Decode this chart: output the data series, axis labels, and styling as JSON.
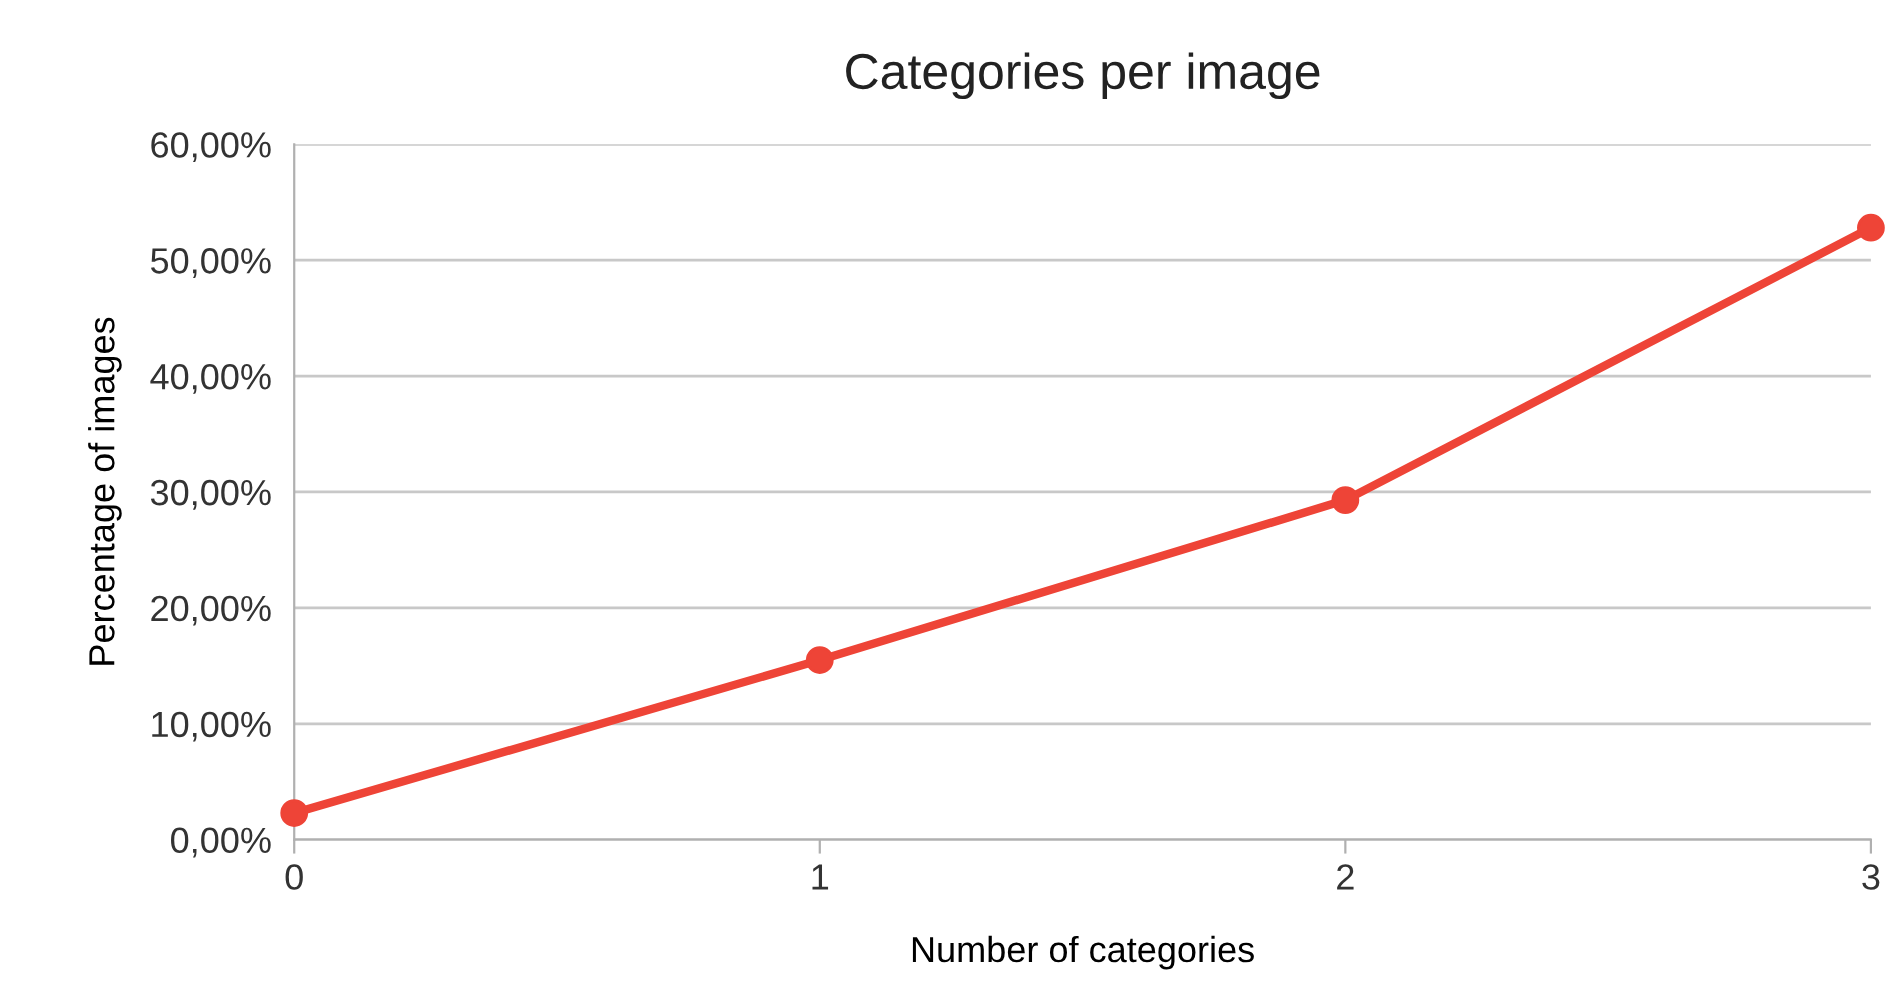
{
  "chart_data": {
    "type": "line",
    "title": "Categories per image",
    "xlabel": "Number of categories",
    "ylabel": "Percentage of images",
    "x": [
      0,
      1,
      2,
      3
    ],
    "series": [
      {
        "color": "#ee4437",
        "values": [
          2.3,
          15.5,
          29.3,
          52.8
        ]
      }
    ],
    "xlim": [
      0,
      3
    ],
    "xticks": [
      0,
      1,
      2,
      3
    ],
    "ylim": [
      0,
      60
    ],
    "yticks": [
      {
        "value": 0,
        "label": "0,00%"
      },
      {
        "value": 10,
        "label": "10,00%"
      },
      {
        "value": 20,
        "label": "20,00%"
      },
      {
        "value": 30,
        "label": "30,00%"
      },
      {
        "value": 40,
        "label": "40,00%"
      },
      {
        "value": 50,
        "label": "50,00%"
      },
      {
        "value": 60,
        "label": "60,00%"
      }
    ],
    "grid": "y",
    "marker": "circle",
    "line_style": "solid",
    "legend": false
  }
}
